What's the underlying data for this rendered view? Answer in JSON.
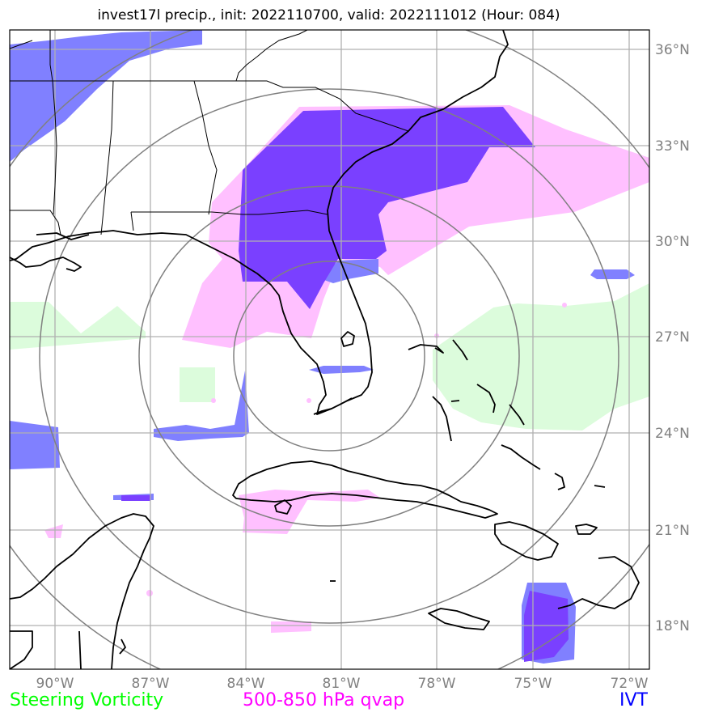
{
  "title": "invest17l precip., init: 2022110700, valid: 2022111012 (Hour: 084)",
  "lon_labels": [
    "90°W",
    "87°W",
    "84°W",
    "81°W",
    "78°W",
    "75°W",
    "72°W"
  ],
  "lat_labels": [
    "36°N",
    "33°N",
    "30°N",
    "27°N",
    "24°N",
    "21°N",
    "18°N"
  ],
  "legend": [
    {
      "label": "Steering Vorticity",
      "color": "#00ff00"
    },
    {
      "label": "500-850 hPa qvap",
      "color": "#ff00ff"
    },
    {
      "label": "IVT",
      "color": "#0000ff"
    }
  ],
  "colors": {
    "vorticity_fill": "#dcfcdc",
    "qvap_fill": "#ffc0ff",
    "ivt_fill": "#8080ff",
    "ivt_overlap": "#7a40ff",
    "grid": "#b0b0b0",
    "range_rings": "#808080",
    "coastline": "#000000"
  }
}
